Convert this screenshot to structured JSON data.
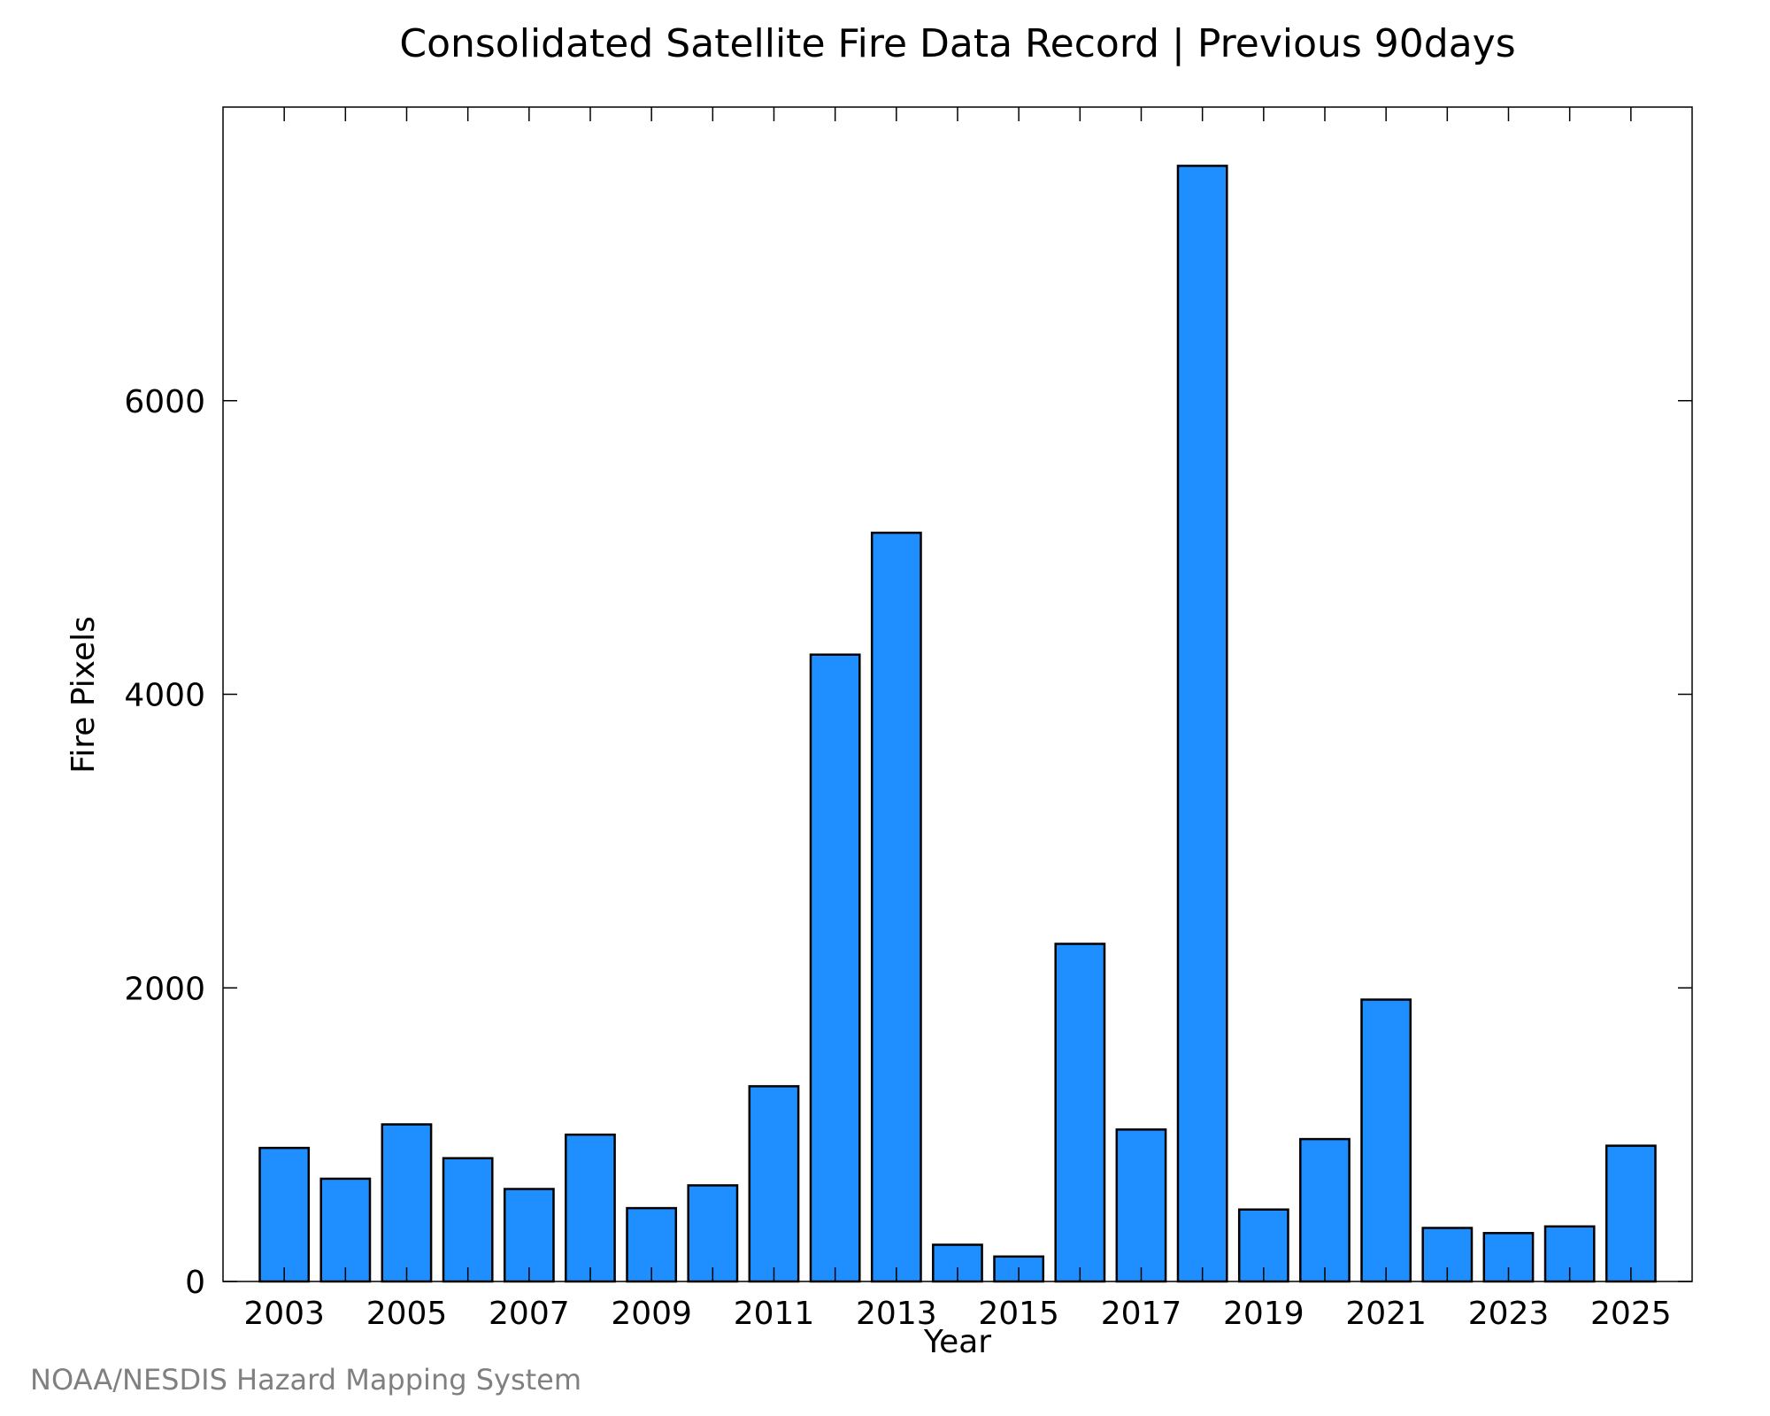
{
  "chart_data": {
    "type": "bar",
    "title": "Consolidated Satellite Fire Data Record | Previous 90days",
    "xlabel": "Year",
    "ylabel": "Fire Pixels",
    "credit": "NOAA/NESDIS Hazard Mapping System",
    "categories": [
      2003,
      2004,
      2005,
      2006,
      2007,
      2008,
      2009,
      2010,
      2011,
      2012,
      2013,
      2014,
      2015,
      2016,
      2017,
      2018,
      2019,
      2020,
      2021,
      2022,
      2023,
      2024,
      2025
    ],
    "values": [
      910,
      700,
      1070,
      840,
      630,
      1000,
      500,
      655,
      1330,
      4270,
      5100,
      250,
      170,
      2300,
      1035,
      7600,
      490,
      970,
      1920,
      365,
      330,
      375,
      925
    ],
    "x_tick_labels": [
      "2003",
      "2005",
      "2007",
      "2009",
      "2011",
      "2013",
      "2015",
      "2017",
      "2019",
      "2021",
      "2023",
      "2025"
    ],
    "y_tick_labels": [
      "0",
      "2000",
      "4000",
      "6000"
    ],
    "y_ticks": [
      0,
      2000,
      4000,
      6000
    ],
    "ylim": [
      0,
      8000
    ],
    "xlim": [
      2002,
      2026
    ],
    "grid": false,
    "legend": "none",
    "bar_color": "#1f8fff",
    "bar_edge_color": "#000000"
  }
}
